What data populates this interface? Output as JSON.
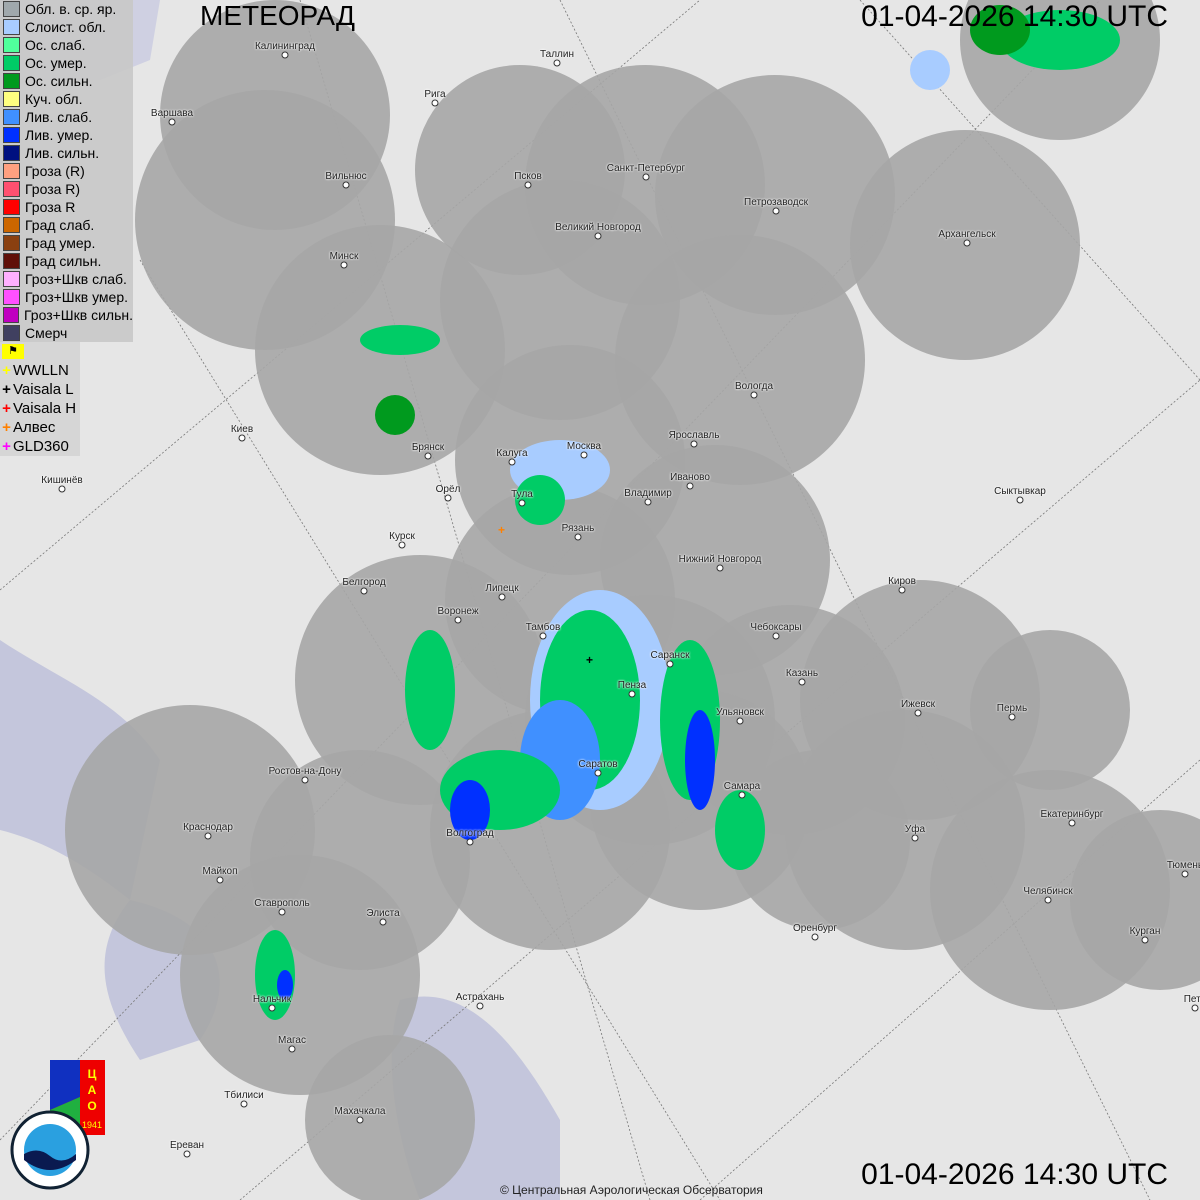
{
  "header": {
    "title": "МЕТЕОРАД",
    "timestamp": "01-04-2026  14:30 UTC"
  },
  "legend": [
    {
      "label": "Обл. в. ср. яр.",
      "color": "#a0a8ac"
    },
    {
      "label": "Слоист. обл.",
      "color": "#a8ccff"
    },
    {
      "label": "Ос. слаб.",
      "color": "#50ff9c"
    },
    {
      "label": "Ос. умер.",
      "color": "#00cc66"
    },
    {
      "label": "Ос. сильн.",
      "color": "#009a1e"
    },
    {
      "label": "Куч. обл.",
      "color": "#ffff80"
    },
    {
      "label": "Лив. слаб.",
      "color": "#4090ff"
    },
    {
      "label": "Лив. умер.",
      "color": "#0030ff"
    },
    {
      "label": "Лив. сильн.",
      "color": "#001080"
    },
    {
      "label": "Гроза (R)",
      "color": "#ffa080"
    },
    {
      "label": "Гроза R)",
      "color": "#ff5070"
    },
    {
      "label": "Гроза R",
      "color": "#ff0000"
    },
    {
      "label": "Град слаб.",
      "color": "#cc6600"
    },
    {
      "label": "Град умер.",
      "color": "#8a4010"
    },
    {
      "label": "Град сильн.",
      "color": "#601008"
    },
    {
      "label": "Гроз+Шкв слаб.",
      "color": "#ffb0ff"
    },
    {
      "label": "Гроз+Шкв умер.",
      "color": "#ff50ff"
    },
    {
      "label": "Гроз+Шкв сильн.",
      "color": "#c000c0"
    },
    {
      "label": "Смерч",
      "color": "#404060"
    }
  ],
  "lightning": [
    {
      "label": "WWLLN",
      "color": "#ffff00"
    },
    {
      "label": "Vaisala L",
      "color": "#000000"
    },
    {
      "label": "Vaisala H",
      "color": "#ff0000"
    },
    {
      "label": "Алвес",
      "color": "#ff8000"
    },
    {
      "label": "GLD360",
      "color": "#ff00ff"
    }
  ],
  "cities": [
    "Калининград",
    "Таллин",
    "Варшава",
    "Рига",
    "Санкт-Петербург",
    "Вильнюс",
    "Псков",
    "Петрозаводск",
    "Великий Новгород",
    "Архангельск",
    "Минск",
    "Вологда",
    "Киев",
    "Брянск",
    "Калуга",
    "Москва",
    "Ярославль",
    "Иваново",
    "Кишинёв",
    "Орёл",
    "Тула",
    "Владимир",
    "Сыктывкар",
    "Рязань",
    "Курск",
    "Нижний Новгород",
    "Белгород",
    "Киров",
    "Липецк",
    "Воронеж",
    "Тамбов",
    "Чебоксары",
    "Саранск",
    "Пенза",
    "Казань",
    "Ижевск",
    "Пермь",
    "Ульяновск",
    "Ростов-на-Дону",
    "Саратов",
    "Самара",
    "Краснодар",
    "Волгоград",
    "Уфа",
    "Екатеринбург",
    "Майкоп",
    "Тюмень",
    "Челябинск",
    "Ставрополь",
    "Элиста",
    "Оренбург",
    "Курган",
    "Астрахань",
    "Нальчик",
    "Петр",
    "Магас",
    "Тбилиси",
    "Махачкала",
    "Ереван"
  ],
  "logos": {
    "cao": "ЦАО 1941",
    "roshydromet": "РОСГИДРОМЕТ ROSHYDROMET"
  },
  "footer": {
    "copyright": "© Центральная Аэрологическая Обсерватория"
  }
}
